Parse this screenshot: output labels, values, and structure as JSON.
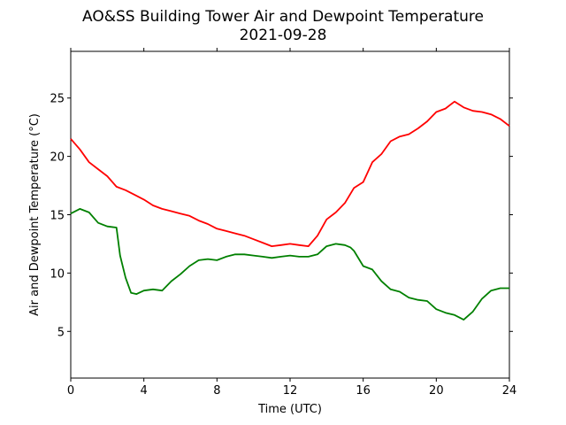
{
  "chart_data": {
    "type": "line",
    "title": "AO&SS Building Tower Air and Dewpoint Temperature",
    "subtitle": "2021-09-28",
    "xlabel": "Time (UTC)",
    "ylabel": "Air and Dewpoint Temperature (°C)",
    "xlim": [
      0,
      24
    ],
    "ylim": [
      1,
      29
    ],
    "xticks": [
      0,
      4,
      8,
      12,
      16,
      20,
      24
    ],
    "yticks": [
      5,
      10,
      15,
      20,
      25
    ],
    "grid": false,
    "legend": "none",
    "series": [
      {
        "color": "#ff0000",
        "x": [
          0,
          0.5,
          1,
          1.5,
          2,
          2.5,
          3,
          3.5,
          4,
          4.5,
          5,
          5.5,
          6,
          6.5,
          7,
          7.5,
          8,
          8.5,
          9,
          9.5,
          10,
          10.5,
          11,
          11.5,
          12,
          12.5,
          13,
          13.5,
          14,
          14.5,
          15,
          15.5,
          16,
          16.5,
          17,
          17.5,
          18,
          18.5,
          19,
          19.5,
          20,
          20.5,
          21,
          21.5,
          22,
          22.5,
          23,
          23.5,
          24
        ],
        "y": [
          21.5,
          20.6,
          19.5,
          18.9,
          18.3,
          17.4,
          17.1,
          16.7,
          16.3,
          15.8,
          15.5,
          15.3,
          15.1,
          14.9,
          14.5,
          14.2,
          13.8,
          13.6,
          13.4,
          13.2,
          12.9,
          12.6,
          12.3,
          12.4,
          12.5,
          12.4,
          12.3,
          13.2,
          14.6,
          15.2,
          16.0,
          17.3,
          17.8,
          19.5,
          20.2,
          21.3,
          21.7,
          21.9,
          22.4,
          23.0,
          23.8,
          24.1,
          24.7,
          24.2,
          23.9,
          23.8,
          23.6,
          23.2,
          22.6
        ]
      },
      {
        "color": "#008000",
        "x": [
          0,
          0.5,
          1,
          1.5,
          2,
          2.5,
          2.7,
          3,
          3.3,
          3.6,
          4,
          4.5,
          5,
          5.5,
          6,
          6.5,
          7,
          7.5,
          8,
          8.5,
          9,
          9.5,
          10,
          10.5,
          11,
          11.5,
          12,
          12.5,
          13,
          13.5,
          14,
          14.5,
          15,
          15.3,
          15.5,
          16,
          16.5,
          17,
          17.5,
          18,
          18.5,
          19,
          19.5,
          20,
          20.5,
          21,
          21.5,
          22,
          22.5,
          23,
          23.5,
          24
        ],
        "y": [
          15.1,
          15.5,
          15.2,
          14.3,
          14.0,
          13.9,
          11.5,
          9.6,
          8.3,
          8.2,
          8.5,
          8.6,
          8.5,
          9.3,
          9.9,
          10.6,
          11.1,
          11.2,
          11.1,
          11.4,
          11.6,
          11.6,
          11.5,
          11.4,
          11.3,
          11.4,
          11.5,
          11.4,
          11.4,
          11.6,
          12.3,
          12.5,
          12.4,
          12.2,
          11.9,
          10.6,
          10.3,
          9.3,
          8.6,
          8.4,
          7.9,
          7.7,
          7.6,
          6.9,
          6.6,
          6.4,
          6.0,
          6.7,
          7.8,
          8.5,
          8.7,
          8.7
        ]
      }
    ]
  }
}
